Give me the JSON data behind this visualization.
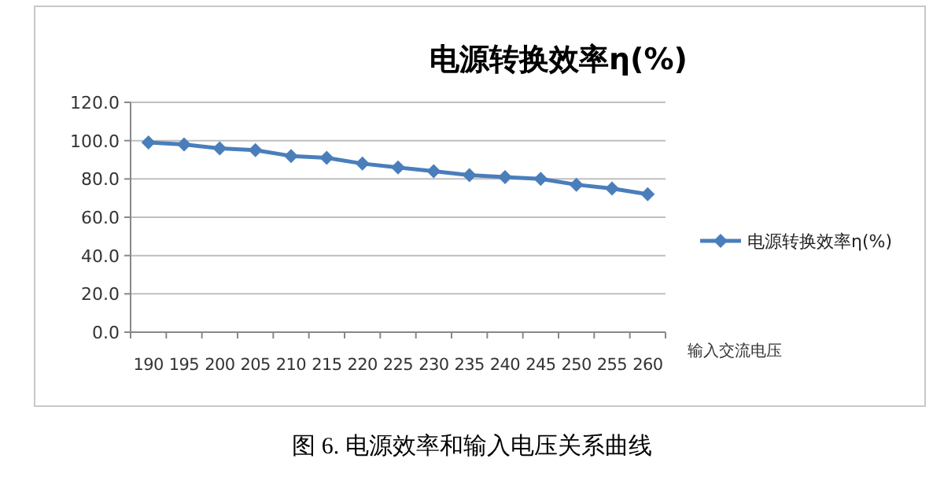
{
  "chart_data": {
    "type": "line",
    "title": "电源转换效率η(%)",
    "xlabel": "输入交流电压",
    "categories": [
      "190",
      "195",
      "200",
      "205",
      "210",
      "215",
      "220",
      "225",
      "230",
      "235",
      "240",
      "245",
      "250",
      "255",
      "260"
    ],
    "series": [
      {
        "name": "电源转换效率η(%)",
        "color": "#4a7ebb",
        "values": [
          99,
          98,
          96,
          95,
          92,
          91,
          88,
          86,
          84,
          82,
          81,
          80,
          77,
          75,
          72
        ]
      }
    ],
    "ylim": [
      0,
      120
    ],
    "yticks": [
      {
        "value": 0,
        "label": "0.0"
      },
      {
        "value": 20,
        "label": "20.0"
      },
      {
        "value": 40,
        "label": "40.0"
      },
      {
        "value": 60,
        "label": "60.0"
      },
      {
        "value": 80,
        "label": "80.0"
      },
      {
        "value": 100,
        "label": "100.0"
      },
      {
        "value": 120,
        "label": "120.0"
      }
    ],
    "grid": "y",
    "legend": "right",
    "marker": "diamond",
    "annotations": [
      "图 6. 电源效率和输入电压关系曲线"
    ]
  }
}
